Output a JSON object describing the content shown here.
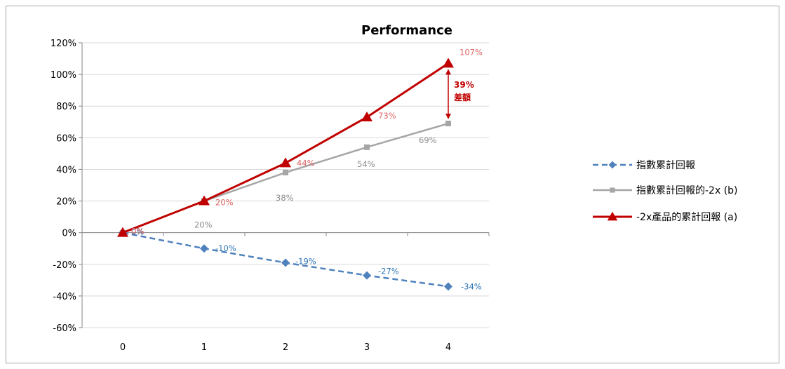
{
  "chart_data": {
    "type": "line",
    "title": "Performance",
    "x": [
      "0",
      "1",
      "2",
      "3",
      "4"
    ],
    "yticks": [
      "120%",
      "100%",
      "80%",
      "60%",
      "40%",
      "20%",
      "0%",
      "-20%",
      "-40%",
      "-60%"
    ],
    "ylim": [
      -60,
      120
    ],
    "grid": true,
    "legend_position": "right",
    "series": [
      {
        "name": "指數累計回報",
        "values": [
          0,
          -10,
          -19,
          -27,
          -34
        ],
        "labels": [
          "0%",
          "-10%",
          "-19%",
          "-27%",
          "-34%"
        ],
        "color": "#4f81bd",
        "label_color": "#2e75b6",
        "style": "dashed",
        "marker": "diamond"
      },
      {
        "name": "指數累計回報的-2x (b)",
        "values": [
          0,
          20,
          38,
          54,
          69
        ],
        "labels": [
          "0%",
          "20%",
          "38%",
          "54%",
          "69%"
        ],
        "color": "#a6a6a6",
        "label_color": "#8c8c8c",
        "style": "solid",
        "marker": "square"
      },
      {
        "name": "-2x產品的累計回報 (a)",
        "values": [
          0,
          20,
          44,
          73,
          107
        ],
        "labels": [
          "0%",
          "20%",
          "44%",
          "73%",
          "107%"
        ],
        "color": "#c00000",
        "label_color": "#e06666",
        "style": "solid",
        "marker": "triangle"
      }
    ],
    "annotation": {
      "value": "39%",
      "text": "差額"
    }
  }
}
